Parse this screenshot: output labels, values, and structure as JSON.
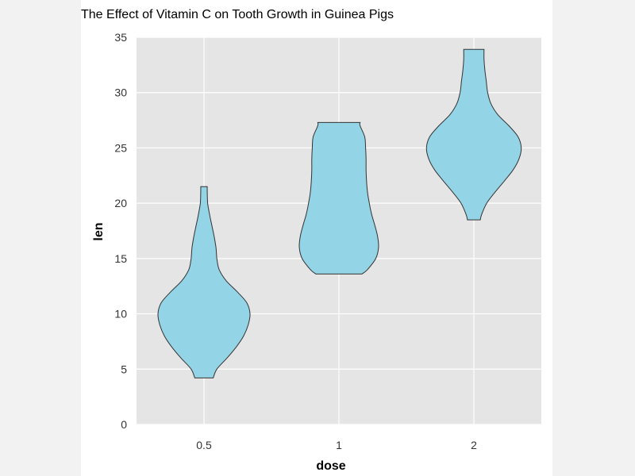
{
  "chart_data": {
    "type": "violin",
    "title": "The Effect of Vitamin C on Tooth Growth in Guinea Pigs",
    "xlabel": "dose",
    "ylabel": "len",
    "categories": [
      "0.5",
      "1",
      "2"
    ],
    "ylim": [
      0,
      35
    ],
    "yticks": [
      0,
      5,
      10,
      15,
      20,
      25,
      30,
      35
    ],
    "grid": true,
    "fill_color": "#8ed3e6",
    "stroke_color": "#333333",
    "panel_background": "#e5e5e5",
    "grid_color": "#ffffff",
    "series": [
      {
        "category": "0.5",
        "min": 4.2,
        "max": 21.5,
        "density": [
          [
            4.2,
            0.2
          ],
          [
            5.0,
            0.28
          ],
          [
            6.0,
            0.5
          ],
          [
            7.0,
            0.7
          ],
          [
            8.0,
            0.86
          ],
          [
            9.0,
            0.96
          ],
          [
            10.0,
            1.0
          ],
          [
            11.0,
            0.93
          ],
          [
            12.0,
            0.72
          ],
          [
            13.0,
            0.48
          ],
          [
            14.0,
            0.33
          ],
          [
            15.0,
            0.28
          ],
          [
            16.0,
            0.26
          ],
          [
            17.0,
            0.22
          ],
          [
            18.0,
            0.17
          ],
          [
            19.0,
            0.12
          ],
          [
            20.0,
            0.08
          ],
          [
            21.0,
            0.07
          ],
          [
            21.5,
            0.07
          ]
        ]
      },
      {
        "category": "1",
        "min": 13.6,
        "max": 27.3,
        "density": [
          [
            13.6,
            0.5
          ],
          [
            14.0,
            0.62
          ],
          [
            15.0,
            0.8
          ],
          [
            16.0,
            0.86
          ],
          [
            17.0,
            0.84
          ],
          [
            18.0,
            0.78
          ],
          [
            19.0,
            0.71
          ],
          [
            20.0,
            0.66
          ],
          [
            21.0,
            0.62
          ],
          [
            22.0,
            0.6
          ],
          [
            23.0,
            0.59
          ],
          [
            24.0,
            0.59
          ],
          [
            25.0,
            0.58
          ],
          [
            26.0,
            0.56
          ],
          [
            27.0,
            0.46
          ],
          [
            27.3,
            0.46
          ]
        ]
      },
      {
        "category": "2",
        "min": 18.5,
        "max": 33.9,
        "density": [
          [
            18.5,
            0.14
          ],
          [
            19.0,
            0.17
          ],
          [
            20.0,
            0.28
          ],
          [
            21.0,
            0.46
          ],
          [
            22.0,
            0.66
          ],
          [
            23.0,
            0.85
          ],
          [
            24.0,
            0.98
          ],
          [
            25.0,
            1.03
          ],
          [
            26.0,
            0.96
          ],
          [
            27.0,
            0.76
          ],
          [
            28.0,
            0.52
          ],
          [
            29.0,
            0.37
          ],
          [
            30.0,
            0.3
          ],
          [
            31.0,
            0.27
          ],
          [
            32.0,
            0.24
          ],
          [
            33.0,
            0.22
          ],
          [
            33.9,
            0.22
          ]
        ]
      }
    ]
  }
}
